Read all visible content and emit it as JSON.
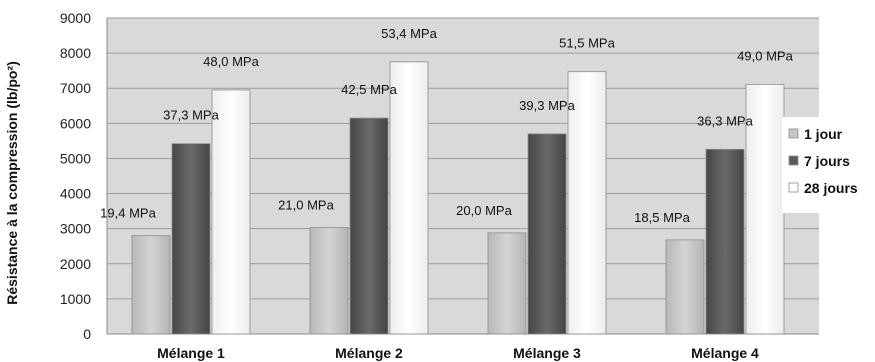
{
  "chart_data": {
    "type": "bar",
    "categories": [
      "Mélange 1",
      "Mélange 2",
      "Mélange 3",
      "Mélange 4"
    ],
    "series": [
      {
        "name": "1 jour",
        "values": [
          2800,
          3030,
          2880,
          2680
        ],
        "labels": [
          "19,4 MPa",
          "21,0 MPa",
          "20,0 MPa",
          "18,5 MPa"
        ],
        "color": "#c6c6c6"
      },
      {
        "name": "7 jours",
        "values": [
          5420,
          6150,
          5700,
          5260
        ],
        "labels": [
          "37,3 MPa",
          "42,5 MPa",
          "39,3 MPa",
          "36,3 MPa"
        ],
        "color": "#5a5a5a"
      },
      {
        "name": "28 jours",
        "values": [
          6950,
          7750,
          7470,
          7110
        ],
        "labels": [
          "48,0 MPa",
          "53,4 MPa",
          "51,5 MPa",
          "49,0 MPa"
        ],
        "color": "#fcfcfc"
      }
    ],
    "ylabel": "Résistance à la compression (lb/po²)",
    "ylim": [
      0,
      9000
    ],
    "yticks": [
      "0",
      "1000",
      "2000",
      "3000",
      "4000",
      "5000",
      "6000",
      "7000",
      "8000",
      "9000"
    ],
    "grid": true,
    "legend_position": "right",
    "plot_background": "#d9d9d9"
  }
}
